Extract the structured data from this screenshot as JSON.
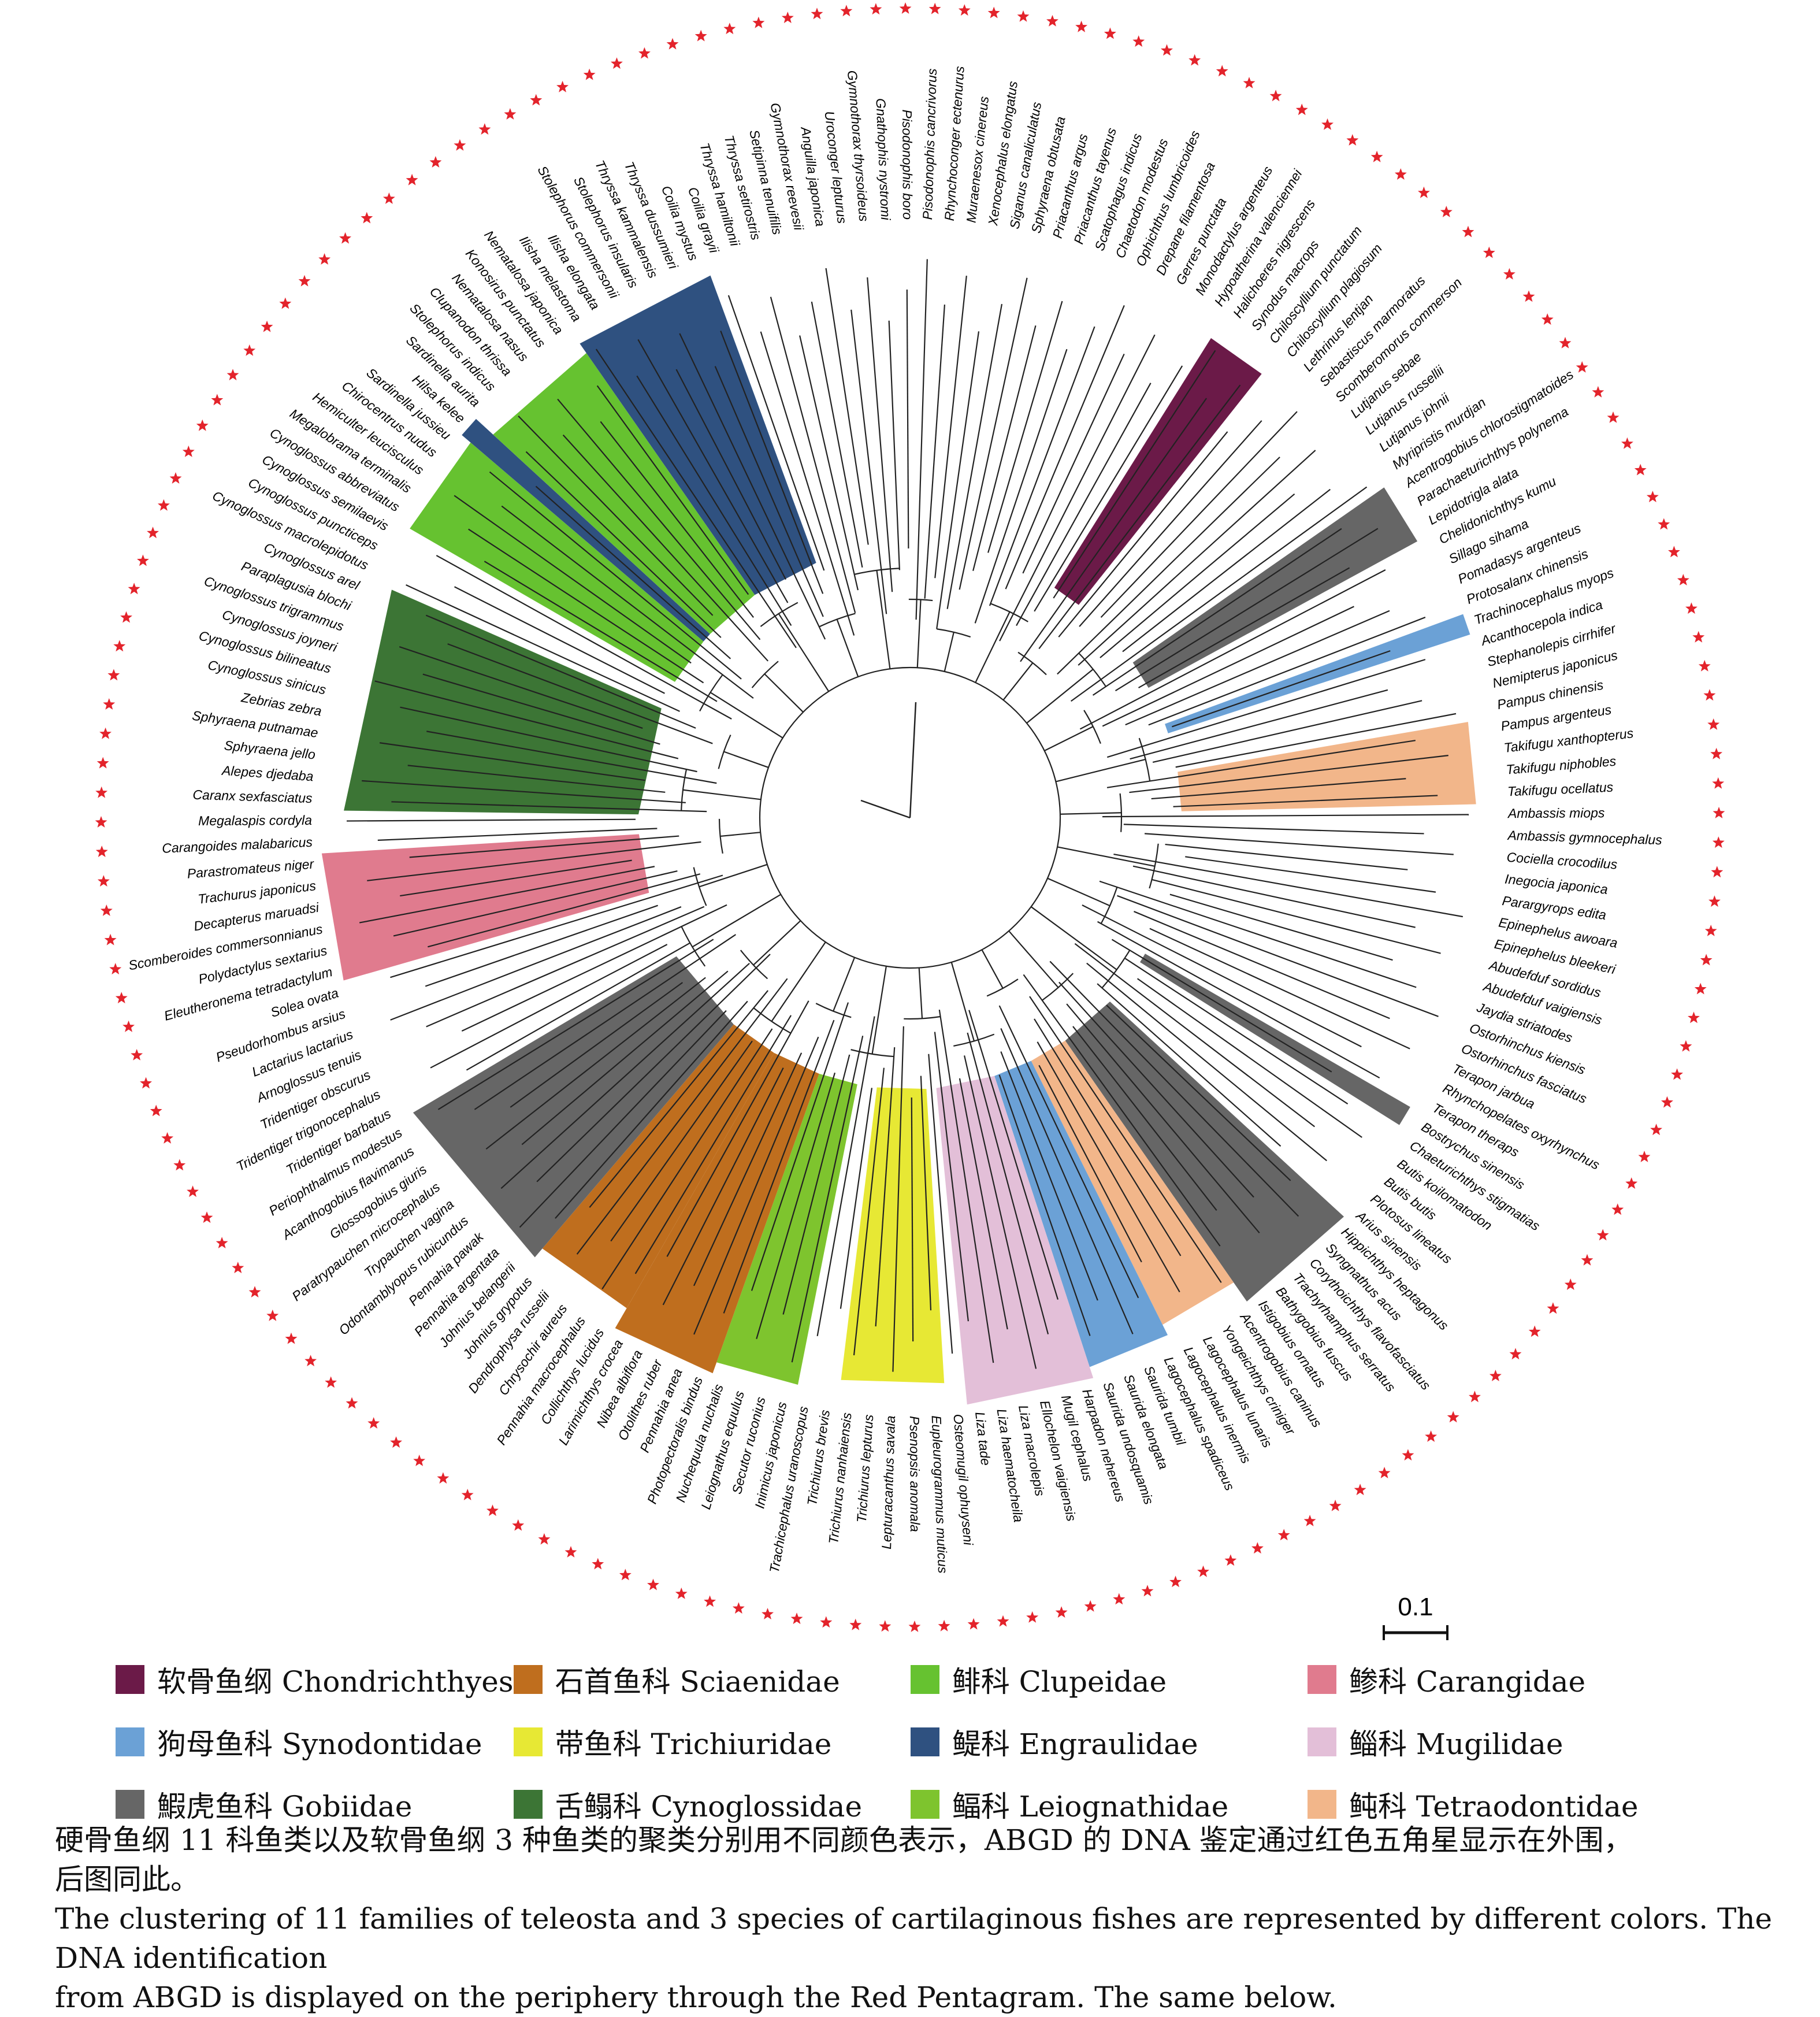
{
  "scale_bar": {
    "label": "0.1"
  },
  "colors": {
    "star": "#e3232b",
    "branch": "#222222"
  },
  "families": [
    {
      "key": "chondrichthyes",
      "label": "软骨鱼纲 Chondrichthyes",
      "color": "#6b1a48"
    },
    {
      "key": "sciaenidae",
      "label": "石首鱼科 Sciaenidae",
      "color": "#bf6e1e"
    },
    {
      "key": "clupeidae",
      "label": "鲱科 Clupeidae",
      "color": "#66c230"
    },
    {
      "key": "carangidae",
      "label": "鲹科 Carangidae",
      "color": "#e07b8e"
    },
    {
      "key": "synodontidae",
      "label": "狗母鱼科 Synodontidae",
      "color": "#6ba1d6"
    },
    {
      "key": "trichiuridae",
      "label": "带鱼科 Trichiuridae",
      "color": "#e7e834"
    },
    {
      "key": "engraulidae",
      "label": "鳀科 Engraulidae",
      "color": "#2f5180"
    },
    {
      "key": "mugilidae",
      "label": "鲻科 Mugilidae",
      "color": "#e3bfd8"
    },
    {
      "key": "gobiidae",
      "label": "鰕虎鱼科 Gobiidae",
      "color": "#666666"
    },
    {
      "key": "cynoglossidae",
      "label": "舌鳎科 Cynoglossidae",
      "color": "#3c7535"
    },
    {
      "key": "leiognathidae",
      "label": "鲾科 Leiognathidae",
      "color": "#7ec42e"
    },
    {
      "key": "tetraodontidae",
      "label": "鲀科 Tetraodontidae",
      "color": "#f2b68a"
    }
  ],
  "taxa": [
    "Xenocephalus elongatus",
    "Siganus canaliculatus",
    "Sphyraena obtusata",
    "Priacanthus argus",
    "Priacanthus tayenus",
    "Scatophagus indicus",
    "Chaetodon modestus",
    "Ophichthus lumbricoides",
    "Drepane filamentosa",
    "Gerres punctata",
    "Monodactylus argenteus",
    "Hypoatherina valenciennei",
    "Halichoeres nigrescens",
    "Synodus macrops",
    "Chiloscyllium punctatum",
    "Chiloscyllium plagiosum",
    "Lethrinus lentjan",
    "Sebastiscus marmoratus",
    "Scomberomorus commerson",
    "Lutjanus sebae",
    "Lutjanus russellii",
    "Lutjanus johnii",
    "Myripristis murdjan",
    "Acentrogobius chlorostigmatoides",
    "Parachaeturichthys polynema",
    "Lepidotrigla alata",
    "Chelidonichthys kumu",
    "Sillago sihama",
    "Pomadasys argenteus",
    "Protosalanx chinensis",
    "Trachinocephalus myops",
    "Acanthocepola indica",
    "Stephanolepis cirrhifer",
    "Nemipterus japonicus",
    "Pampus chinensis",
    "Pampus argenteus",
    "Takifugu xanthopterus",
    "Takifugu niphobles",
    "Takifugu ocellatus",
    "Ambassis miops",
    "Ambassis gymnocephalus",
    "Cociella crocodilus",
    "Inegocia japonica",
    "Parargyrops edita",
    "Epinephelus awoara",
    "Epinephelus bleekeri",
    "Abudefduf sordidus",
    "Abudefduf vaigiensis",
    "Jaydia striatodes",
    "Ostorhinchus kiensis",
    "Ostorhinchus fasciatus",
    "Terapon jarbua",
    "Rhynchopelates oxyrhynchus",
    "Terapon theraps",
    "Bostrychus sinensis",
    "Chaeturichthys stigmatias",
    "Butis koilomatodon",
    "Butis butis",
    "Plotosus lineatus",
    "Arius sinensis",
    "Hippichthys heptagonus",
    "Syngnathus acus",
    "Corythoichthys flavofasciatus",
    "Trachyrhamphus serratus",
    "Bathygobius fuscus",
    "Istigobius ornatus",
    "Acentrogobius caninus",
    "Yongeichthys criniger",
    "Lagocephalus lunaris",
    "Lagocephalus inermis",
    "Lagocephalus spadiceus",
    "Saurida tumbil",
    "Saurida elongata",
    "Saurida undosquamis",
    "Harpadon nehereus",
    "Mugil cephalus",
    "Ellochelon vaigiensis",
    "Liza macrolepis",
    "Liza haematocheila",
    "Liza tade",
    "Osteomugil ophuyseni",
    "Eupleurogrammus muticus",
    "Psenopsis anomala",
    "Lepturacanthus savala",
    "Trichiurus lepturus",
    "Trichiurus nanhaiensis",
    "Trichiurus brevis",
    "Trachicephalus uranoscopus",
    "Inimicus japonicus",
    "Secutor ruconius",
    "Leiognathus equulus",
    "Nuchequula nuchalis",
    "Photopectoralis bindus",
    "Pennahia anea",
    "Otolithes ruber",
    "Nibea albiflora",
    "Larimichthys crocea",
    "Collichthys lucidus",
    "Pennahia macrocephalus",
    "Chrysochir aureus",
    "Dendrophysa russelii",
    "Johnius grypotus",
    "Johnius belangerii",
    "Pennahia argentata",
    "Pennahia pawak",
    "Odontamblyopus rubicundus",
    "Trypauchen vagina",
    "Paratrypauchen microcephalus",
    "Glossogobius giuris",
    "Acanthogobius flavimanus",
    "Periophthalmus modestus",
    "Tridentiger barbatus",
    "Tridentiger trigonocephalus",
    "Tridentiger obscurus",
    "Arnoglossus tenuis",
    "Lactarius lactarius",
    "Pseudorhombus arsius",
    "Solea ovata",
    "Eleutheronema tetradactylum",
    "Polydactylus sextarius",
    "Scomberoides commersonnianus",
    "Decapterus maruadsi",
    "Trachurus japonicus",
    "Parastromateus niger",
    "Carangoides malabaricus",
    "Megalaspis cordyla",
    "Caranx sexfasciatus",
    "Alepes djedaba",
    "Sphyraena jello",
    "Sphyraena putnamae",
    "Zebrias zebra",
    "Cynoglossus sinicus",
    "Cynoglossus bilineatus",
    "Cynoglossus joyneri",
    "Cynoglossus trigrammus",
    "Paraplagusia blochi",
    "Cynoglossus arel",
    "Cynoglossus macrolepidotus",
    "Cynoglossus puncticeps",
    "Cynoglossus semilaevis",
    "Cynoglossus abbreviatus",
    "Megalobrama terminalis",
    "Hemiculter leucisculus",
    "Chirocentrus nudus",
    "Sardinella jussieu",
    "Hilsa kelee",
    "Sardinella aurita",
    "Stolephorus indicus",
    "Clupanodon thrissa",
    "Nematalosa nasus",
    "Konosirus punctatus",
    "Nematalosa japonica",
    "Ilisha melastoma",
    "Ilisha elongata",
    "Stolephorus commersonii",
    "Stolephorus insularis",
    "Thryssa kammalensis",
    "Thryssa dussumieri",
    "Coilia mystus",
    "Coilia grayii",
    "Thryssa hamiltonii",
    "Thryssa setirostris",
    "Setipinna tenuifilis",
    "Gymnothorax reevesii",
    "Anguilla japonica",
    "Uroconger lepturus",
    "Gymnothorax thyrsoideus",
    "Gnathophis nystromi",
    "Pisodonophis boro",
    "Pisodonophis cancrivorus",
    "Rhynchoconger ectenurus",
    "Muraenesox cinereus"
  ],
  "clades": [
    {
      "family": "chondrichthyes",
      "start": 12,
      "end": 15
    },
    {
      "family": "gobiidae",
      "start": 23,
      "end": 26
    },
    {
      "family": "synodontidae",
      "start": 30,
      "end": 31
    },
    {
      "family": "tetraodontidae",
      "start": 35,
      "end": 39
    },
    {
      "family": "gobiidae",
      "start": 54,
      "end": 55
    },
    {
      "family": "gobiidae",
      "start": 60,
      "end": 66
    },
    {
      "family": "tetraodontidae",
      "start": 66,
      "end": 70
    },
    {
      "family": "synodontidae",
      "start": 70,
      "end": 74
    },
    {
      "family": "mugilidae",
      "start": 74,
      "end": 80
    },
    {
      "family": "trichiuridae",
      "start": 81,
      "end": 86
    },
    {
      "family": "leiognathidae",
      "start": 88,
      "end": 92
    },
    {
      "family": "sciaenidae",
      "start": 92,
      "end": 97
    },
    {
      "family": "sciaenidae",
      "start": 97,
      "end": 102
    },
    {
      "family": "gobiidae",
      "start": 102,
      "end": 111
    },
    {
      "family": "carangidae",
      "start": 118,
      "end": 124
    },
    {
      "family": "cynoglossidae",
      "start": 126,
      "end": 137
    },
    {
      "family": "clupeidae",
      "start": 140,
      "end": 145
    },
    {
      "family": "engraulidae",
      "start": 145,
      "end": 146
    },
    {
      "family": "clupeidae",
      "start": 146,
      "end": 152
    },
    {
      "family": "engraulidae",
      "start": 152,
      "end": 159
    }
  ],
  "caption": {
    "zh_line1": "硬骨鱼纲 11 科鱼类以及软骨鱼纲 3 种鱼类的聚类分别用不同颜色表示，ABGD 的 DNA 鉴定通过红色五角星显示在外围，",
    "zh_line2": "后图同此。",
    "en_line1": "The clustering of 11 families of teleosta and 3 species of cartilaginous fishes are represented by different colors. The DNA identification",
    "en_line2": "from ABGD is displayed on the periphery through the Red Pentagram. The same below."
  }
}
